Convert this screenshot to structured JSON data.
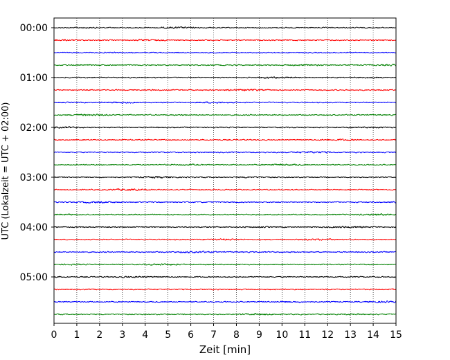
{
  "chart_data": {
    "type": "line",
    "title": "",
    "xlabel": "Zeit  [min]",
    "ylabel": "UTC (Lokalzeit = UTC + 02:00)",
    "xlim": [
      0,
      15
    ],
    "x_ticks": [
      "0",
      "1",
      "2",
      "3",
      "4",
      "5",
      "6",
      "7",
      "8",
      "9",
      "10",
      "11",
      "12",
      "13",
      "14",
      "15"
    ],
    "y_tick_labels": [
      "00:00",
      "01:00",
      "02:00",
      "03:00",
      "04:00",
      "05:00"
    ],
    "trace_interval_min": 15,
    "trace_count": 24,
    "trace_colors": [
      "#000000",
      "#ff0000",
      "#0000ff",
      "#008000"
    ],
    "grid": "vertical dotted",
    "legend": "none"
  }
}
